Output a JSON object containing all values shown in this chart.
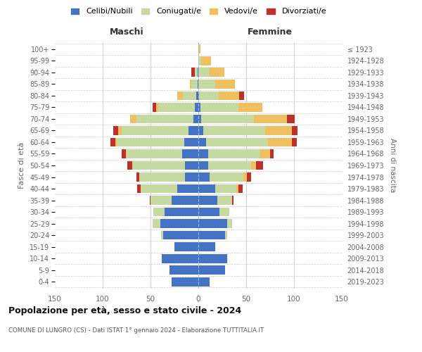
{
  "age_groups": [
    "0-4",
    "5-9",
    "10-14",
    "15-19",
    "20-24",
    "25-29",
    "30-34",
    "35-39",
    "40-44",
    "45-49",
    "50-54",
    "55-59",
    "60-64",
    "65-69",
    "70-74",
    "75-79",
    "80-84",
    "85-89",
    "90-94",
    "95-99",
    "100+"
  ],
  "birth_years": [
    "2019-2023",
    "2014-2018",
    "2009-2013",
    "2004-2008",
    "1999-2003",
    "1994-1998",
    "1989-1993",
    "1984-1988",
    "1979-1983",
    "1974-1978",
    "1969-1973",
    "1964-1968",
    "1959-1963",
    "1954-1958",
    "1949-1953",
    "1944-1948",
    "1939-1943",
    "1934-1938",
    "1929-1933",
    "1924-1928",
    "≤ 1923"
  ],
  "colors": {
    "celibi": "#4472c4",
    "coniugati": "#c5d9a0",
    "vedovi": "#f0c060",
    "divorziati": "#c0302a"
  },
  "maschi": {
    "celibi": [
      28,
      30,
      38,
      25,
      37,
      40,
      35,
      28,
      22,
      14,
      14,
      17,
      15,
      10,
      5,
      4,
      2,
      1,
      1,
      0,
      0
    ],
    "coniugati": [
      0,
      0,
      0,
      0,
      2,
      8,
      12,
      22,
      38,
      48,
      55,
      58,
      70,
      70,
      60,
      38,
      14,
      6,
      3,
      0,
      0
    ],
    "vedovi": [
      0,
      0,
      0,
      0,
      0,
      0,
      0,
      0,
      0,
      0,
      0,
      1,
      2,
      4,
      6,
      2,
      6,
      2,
      0,
      0,
      0
    ],
    "divorziati": [
      0,
      0,
      0,
      0,
      0,
      0,
      0,
      1,
      4,
      3,
      5,
      4,
      5,
      5,
      0,
      4,
      0,
      0,
      3,
      0,
      0
    ]
  },
  "femmine": {
    "celibi": [
      12,
      28,
      30,
      18,
      28,
      30,
      22,
      20,
      18,
      12,
      10,
      10,
      8,
      5,
      3,
      2,
      1,
      0,
      0,
      0,
      0
    ],
    "coniugati": [
      0,
      0,
      0,
      0,
      2,
      5,
      10,
      15,
      22,
      35,
      45,
      55,
      65,
      65,
      55,
      40,
      20,
      18,
      12,
      3,
      0
    ],
    "vedovi": [
      0,
      0,
      0,
      0,
      0,
      0,
      0,
      0,
      2,
      4,
      5,
      10,
      25,
      28,
      35,
      25,
      22,
      20,
      15,
      10,
      2
    ],
    "divorziati": [
      0,
      0,
      0,
      0,
      0,
      0,
      0,
      2,
      4,
      4,
      8,
      4,
      5,
      6,
      8,
      0,
      5,
      0,
      0,
      0,
      0
    ]
  },
  "title": "Popolazione per età, sesso e stato civile - 2024",
  "subtitle": "COMUNE DI LUNGRO (CS) - Dati ISTAT 1° gennaio 2024 - Elaborazione TUTTITALIA.IT",
  "xlabel_maschi": "Maschi",
  "xlabel_femmine": "Femmine",
  "ylabel": "Fasce di età",
  "ylabel_right": "Anni di nascita",
  "xlim": 150,
  "legend_labels": [
    "Celibi/Nubili",
    "Coniugati/e",
    "Vedovi/e",
    "Divorziati/e"
  ],
  "background_color": "#ffffff",
  "grid_color": "#cccccc"
}
